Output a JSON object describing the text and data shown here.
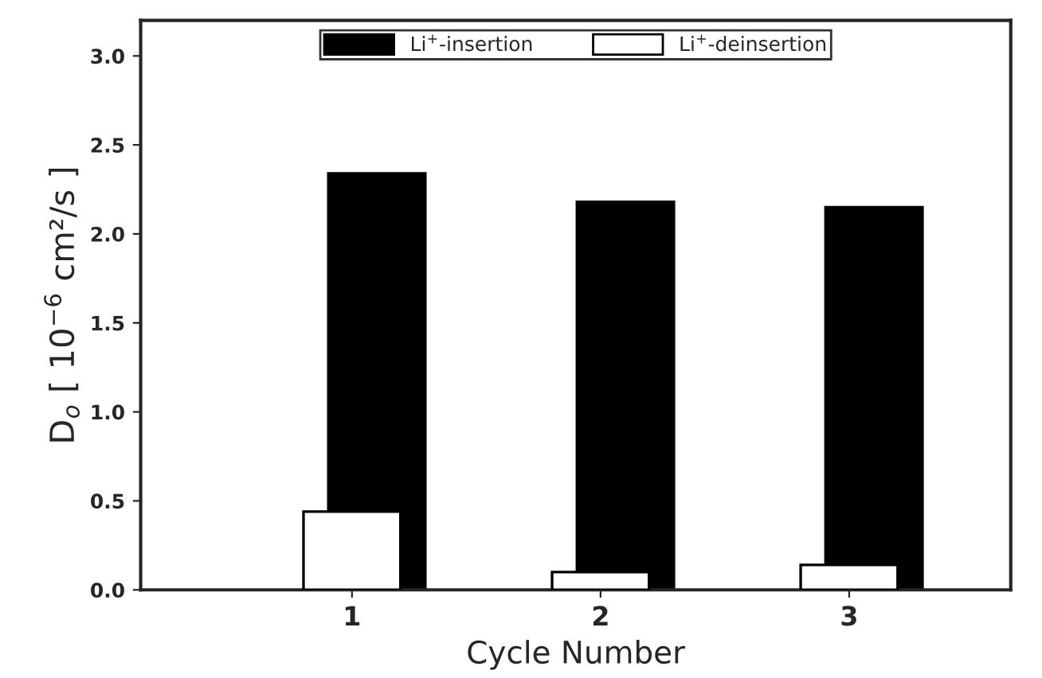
{
  "chart_data": {
    "type": "bar",
    "xlabel": "Cycle Number",
    "ylabel": "D$_{o}$ [ 10$^{−6}$ cm²/s ]",
    "categories": [
      "1",
      "2",
      "3"
    ],
    "series": [
      {
        "name": "Li$^{+}$-insertion",
        "color": "#000000",
        "values": [
          2.34,
          2.18,
          2.15
        ]
      },
      {
        "name": "Li$^{+}$-deinsertion",
        "color": "#ffffff",
        "values": [
          0.44,
          0.1,
          0.14
        ]
      }
    ],
    "ylim": [
      0,
      3.2
    ],
    "yticks": [
      {
        "value": 0,
        "label": "0.0"
      },
      0.5,
      {
        "value": 1,
        "label": "1.0"
      },
      1.5,
      {
        "value": 2,
        "label": "2.0"
      },
      2.5,
      {
        "value": 3,
        "label": "3.0"
      }
    ],
    "legend": "top",
    "grid": false
  }
}
